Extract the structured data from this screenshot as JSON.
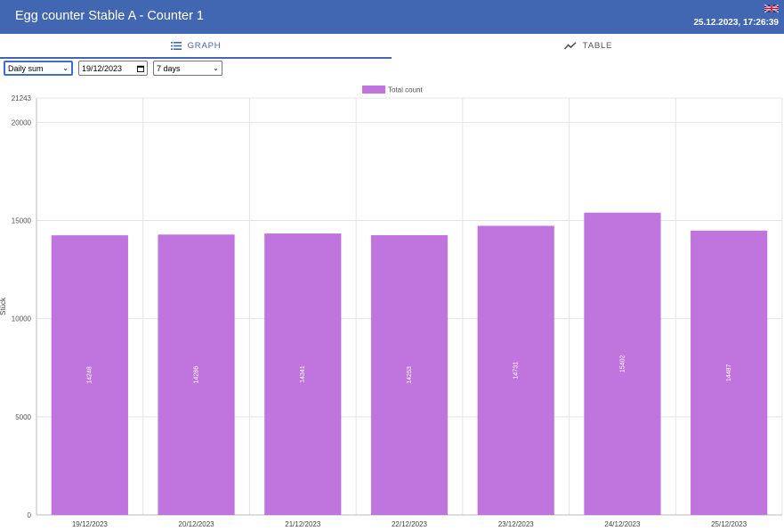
{
  "header": {
    "title": "Egg counter Stable A - Counter 1",
    "datetime": "25.12.2023, 17:26:39",
    "language_flag": "uk-flag-icon"
  },
  "tabs": [
    {
      "label": "GRAPH",
      "icon": "list-icon",
      "active": true
    },
    {
      "label": "TABLE",
      "icon": "trend-line-icon",
      "active": false
    }
  ],
  "controls": {
    "mode": "Daily sum",
    "date": "19/12/2023",
    "range": "7 days"
  },
  "colors": {
    "header": "#4267b2",
    "bar": "#c074de",
    "accent": "#4267b2"
  },
  "chart_data": {
    "type": "bar",
    "categories": [
      "19/12/2023",
      "20/12/2023",
      "21/12/2023",
      "22/12/2023",
      "23/12/2023",
      "24/12/2023",
      "25/12/2023"
    ],
    "series": [
      {
        "name": "Total count",
        "values": [
          14248,
          14286,
          14341,
          14253,
          14731,
          15402,
          14487
        ]
      }
    ],
    "ylabel": "Stück",
    "ylim": [
      0,
      21243
    ],
    "yticks": [
      0,
      5000,
      10000,
      15000,
      20000,
      21243
    ],
    "grid": true,
    "legend": "top-center",
    "data_labels": "inside-vertical"
  }
}
